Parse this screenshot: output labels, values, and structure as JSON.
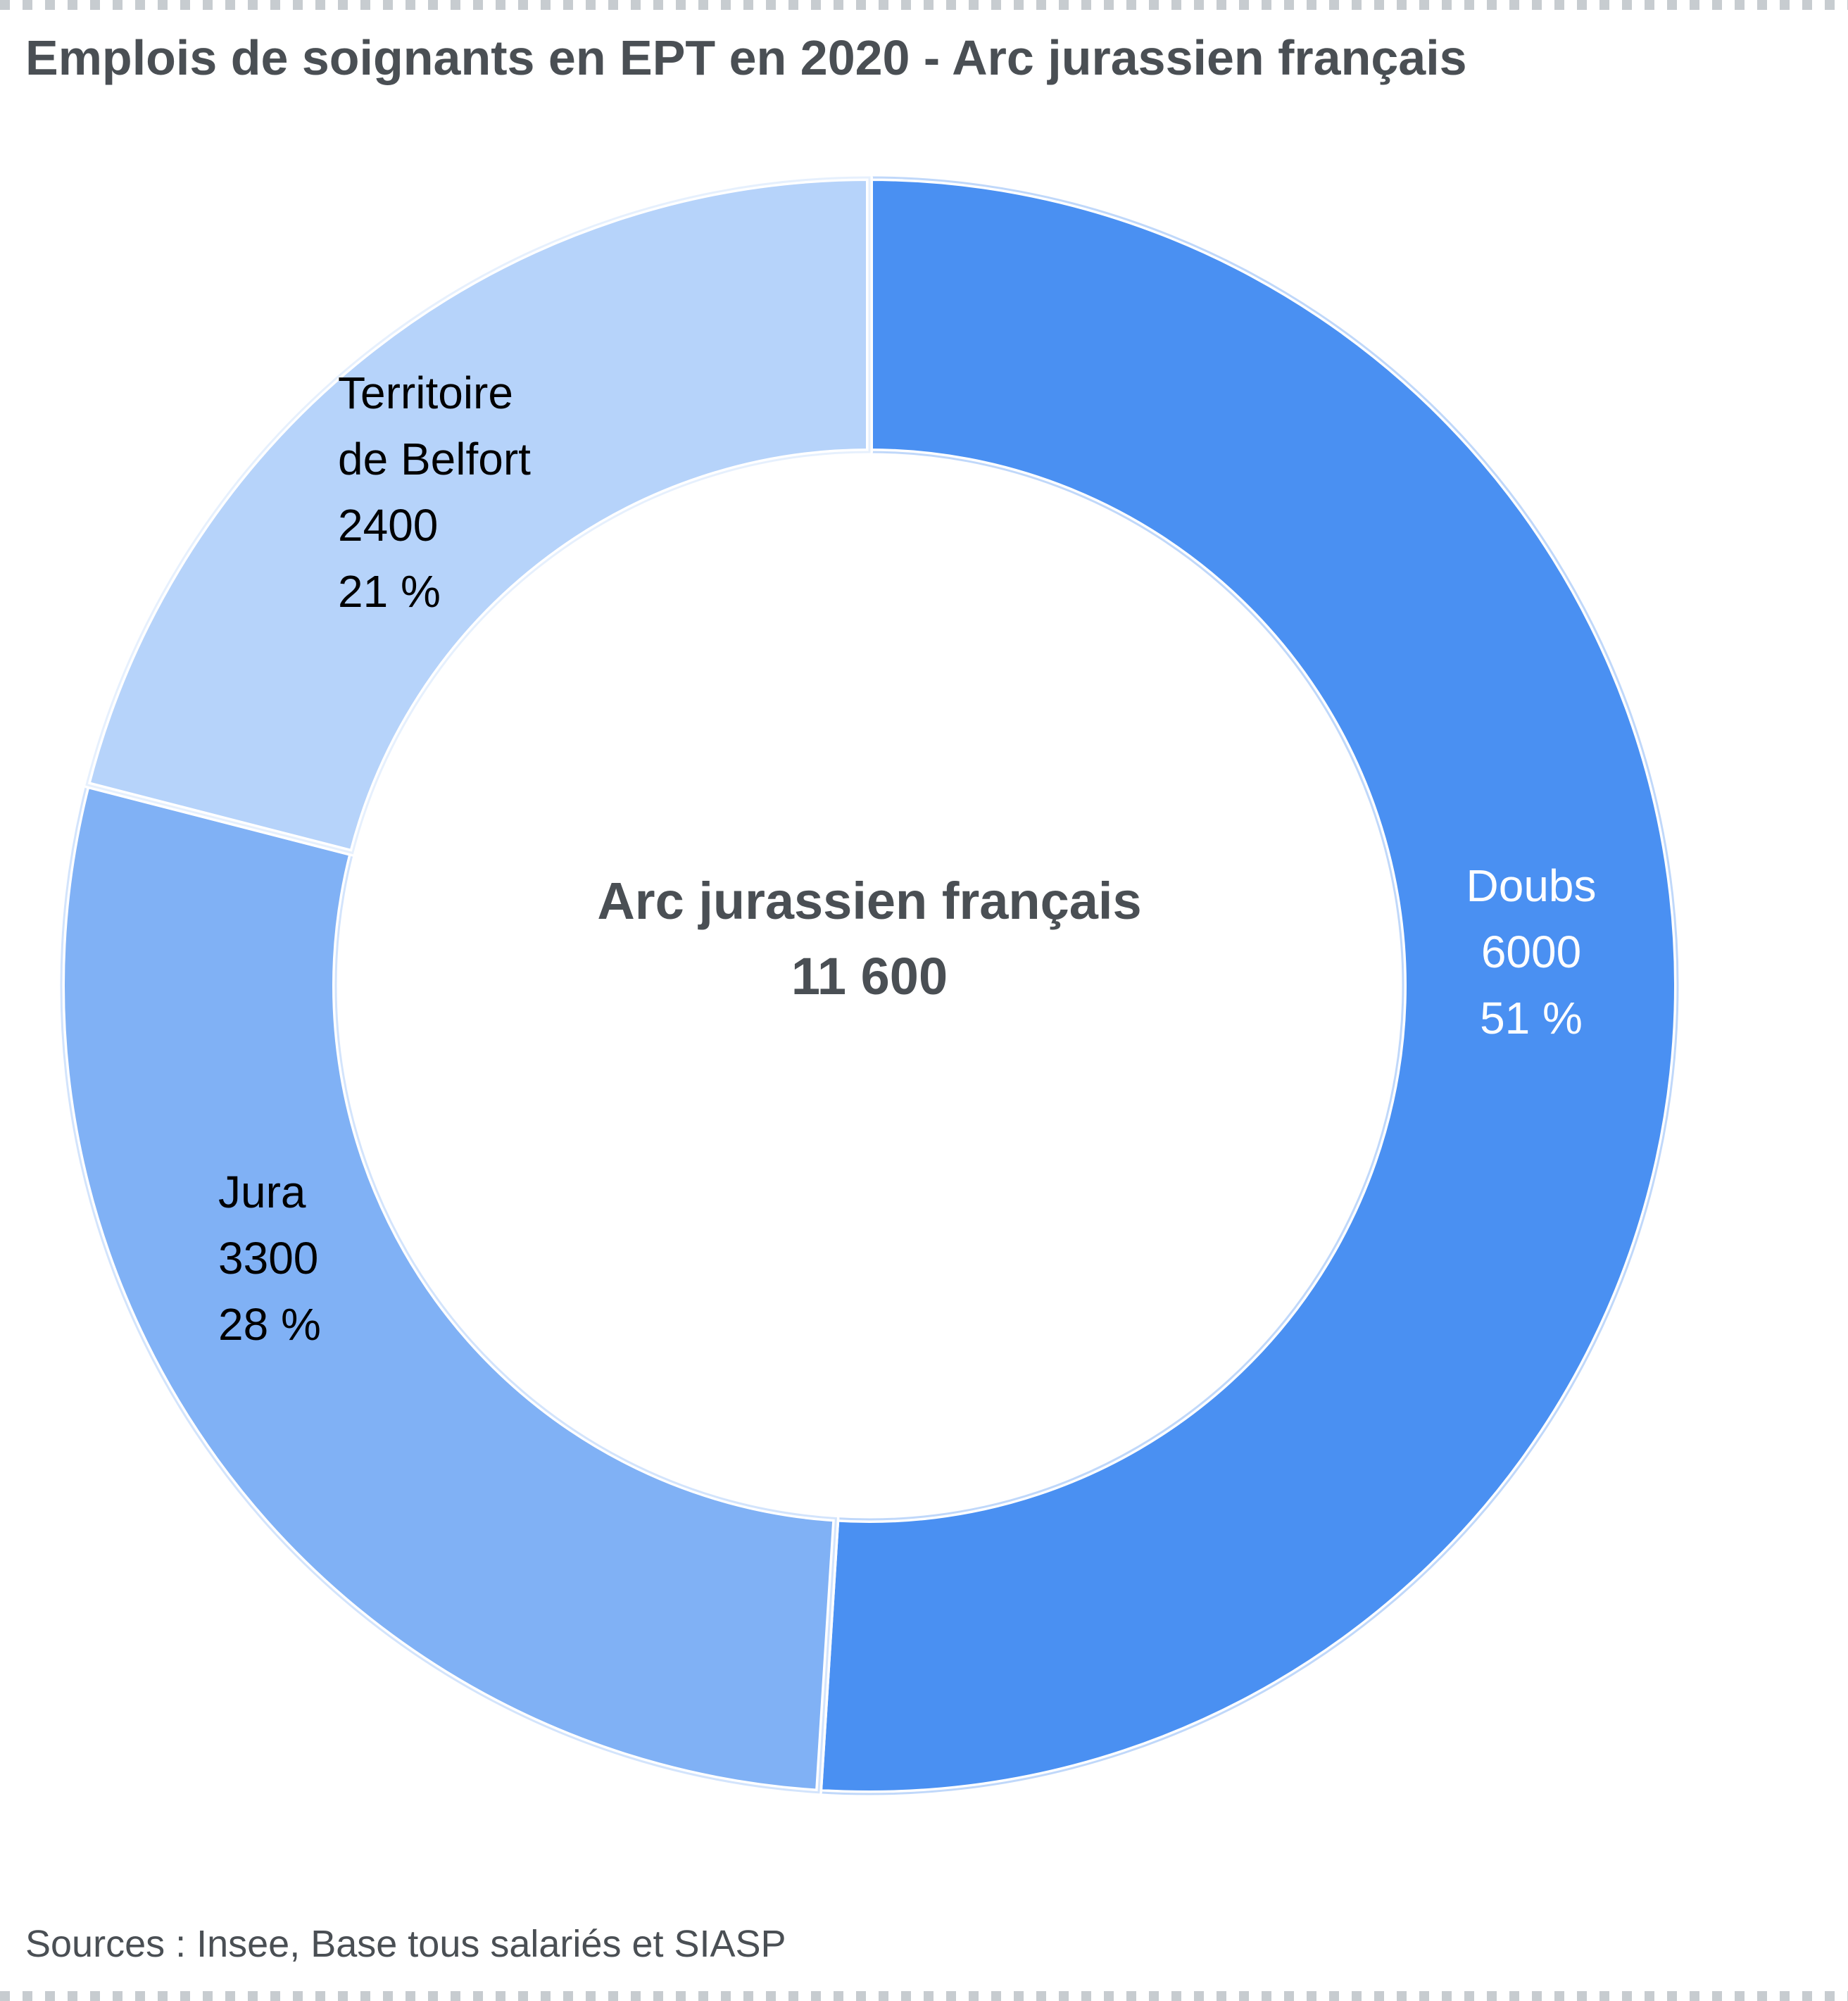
{
  "chart_data": {
    "type": "pie",
    "title": "Emplois de soignants en EPT en 2020 - Arc jurassien français",
    "center_label": {
      "line1": "Arc jurassien français",
      "line2": "11 600"
    },
    "slices": [
      {
        "name": "Doubs",
        "label_lines": [
          "Doubs"
        ],
        "value": 6000,
        "percent_label": "51 %",
        "share": 0.51,
        "color": "#4a90f2",
        "label_color": "#ffffff"
      },
      {
        "name": "Jura",
        "label_lines": [
          "Jura"
        ],
        "value": 3300,
        "percent_label": "28 %",
        "share": 0.28,
        "color": "#80b1f5",
        "label_color": "#000000"
      },
      {
        "name": "Territoire de Belfort",
        "label_lines": [
          "Territoire",
          "de Belfort"
        ],
        "value": 2400,
        "percent_label": "21 %",
        "share": 0.21,
        "color": "#b6d3fa",
        "label_color": "#000000"
      }
    ],
    "legend": "none"
  },
  "source": "Sources : Insee, Base tous salariés et SIASP"
}
